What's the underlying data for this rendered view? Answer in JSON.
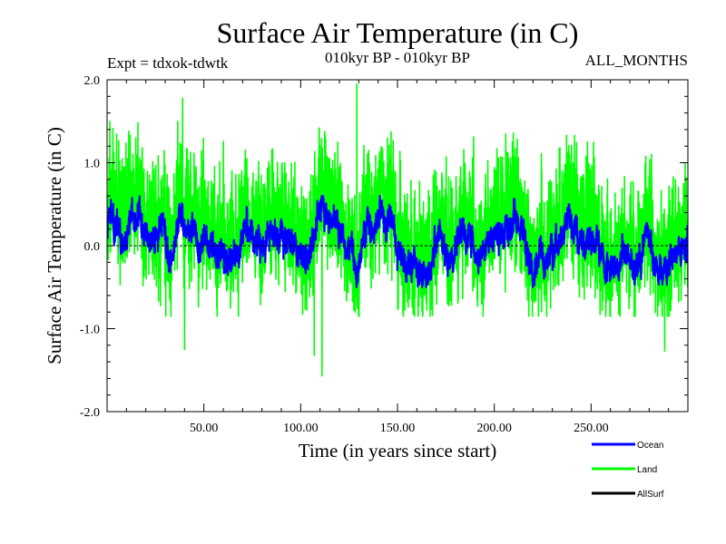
{
  "title": "Surface Air Temperature (in C)",
  "expt_label": "Expt = tdxok-tdwtk",
  "period_label": "010kyr BP - 010kyr BP",
  "months_label": "ALL_MONTHS",
  "chart_data": {
    "type": "line",
    "title": "Surface Air Temperature (in C)",
    "xlabel": "Time (in years since start)",
    "ylabel": "Surface Air Temperature (in C)",
    "xlim": [
      0,
      300
    ],
    "ylim": [
      -2.0,
      2.0
    ],
    "x_ticks": [
      50,
      100,
      150,
      200,
      250
    ],
    "x_tick_labels": [
      "50.00",
      "100.00",
      "150.00",
      "200.00",
      "250.00"
    ],
    "y_ticks": [
      -2.0,
      -1.0,
      0.0,
      1.0,
      2.0
    ],
    "y_tick_labels": [
      "-2.0",
      "-1.0",
      "0.0",
      "1.0",
      "2.0"
    ],
    "zero_line": true,
    "legend_position": "bottom-right, below plot",
    "series": [
      {
        "name": "Land",
        "color": "#00ff00",
        "sampling": "monthly",
        "mean": 0.3,
        "min": -1.57,
        "max": 1.95,
        "typical_range": [
          -0.5,
          1.1
        ]
      },
      {
        "name": "Ocean",
        "color": "#0000ff",
        "sampling": "monthly",
        "mean": 0.1,
        "min": -0.5,
        "max": 0.6,
        "typical_range": [
          -0.3,
          0.45
        ]
      },
      {
        "name": "AllSurf",
        "color": "#000000",
        "sampling": "monthly"
      }
    ],
    "land_extremes": [
      {
        "x": 129,
        "y": 1.95
      },
      {
        "x": 39,
        "y": 1.78
      },
      {
        "x": 111,
        "y": -1.57
      },
      {
        "x": 107,
        "y": -1.32
      },
      {
        "x": 40,
        "y": -1.25
      },
      {
        "x": 288,
        "y": -1.27
      }
    ]
  }
}
